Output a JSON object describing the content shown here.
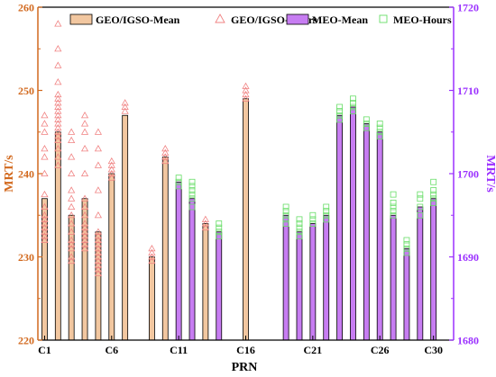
{
  "chart_data": {
    "type": "bar",
    "xlabel": "PRN",
    "ylabel_left": "MRT/s",
    "ylabel_right": "MRT/s",
    "ylim_left": [
      220,
      260
    ],
    "ylim_right": [
      1680,
      1720
    ],
    "yticks_left": [
      220,
      230,
      240,
      250,
      260
    ],
    "yticks_right": [
      1680,
      1690,
      1700,
      1710,
      1720
    ],
    "xtick_labels": [
      {
        "prn": 1,
        "label": "C1"
      },
      {
        "prn": 6,
        "label": "C6"
      },
      {
        "prn": 11,
        "label": "C11"
      },
      {
        "prn": 16,
        "label": "C16"
      },
      {
        "prn": 21,
        "label": "C21"
      },
      {
        "prn": 26,
        "label": "C26"
      },
      {
        "prn": 30,
        "label": "C30"
      }
    ],
    "colors": {
      "geo_bar": "#f2c7a0",
      "meo_bar": "#c77df2",
      "geo_marker": "#f08080",
      "meo_marker": "#66dd66",
      "left_axis": "#d2691e",
      "right_axis": "#9b30ff"
    },
    "legend": {
      "placement": "top",
      "geo_mean": "GEO/IGSO-Mean",
      "geo_hours": "GEO/IGSO-Hours",
      "meo_mean": "MEO-Mean",
      "meo_hours": "MEO-Hours"
    },
    "series": [
      {
        "name": "GEO/IGSO-Mean",
        "axis": "left",
        "points": [
          {
            "prn": 1,
            "value": 237
          },
          {
            "prn": 2,
            "value": 245
          },
          {
            "prn": 3,
            "value": 235
          },
          {
            "prn": 4,
            "value": 237
          },
          {
            "prn": 5,
            "value": 233
          },
          {
            "prn": 6,
            "value": 240
          },
          {
            "prn": 7,
            "value": 247
          },
          {
            "prn": 9,
            "value": 230
          },
          {
            "prn": 10,
            "value": 242
          },
          {
            "prn": 13,
            "value": 234
          },
          {
            "prn": 16,
            "value": 249
          }
        ]
      },
      {
        "name": "MEO-Mean",
        "axis": "right",
        "points": [
          {
            "prn": 11,
            "value": 1699
          },
          {
            "prn": 12,
            "value": 1697
          },
          {
            "prn": 14,
            "value": 1693
          },
          {
            "prn": 19,
            "value": 1695
          },
          {
            "prn": 20,
            "value": 1693
          },
          {
            "prn": 21,
            "value": 1694
          },
          {
            "prn": 22,
            "value": 1695
          },
          {
            "prn": 23,
            "value": 1707
          },
          {
            "prn": 24,
            "value": 1708
          },
          {
            "prn": 25,
            "value": 1706
          },
          {
            "prn": 26,
            "value": 1705
          },
          {
            "prn": 27,
            "value": 1695
          },
          {
            "prn": 28,
            "value": 1691
          },
          {
            "prn": 29,
            "value": 1696
          },
          {
            "prn": 30,
            "value": 1697
          }
        ]
      },
      {
        "name": "GEO/IGSO-Hours",
        "axis": "left",
        "points": [
          {
            "prn": 1,
            "values": [
              232,
              232.5,
              233,
              233.5,
              234,
              234.5,
              235,
              236,
              237.5,
              240,
              242,
              243,
              245,
              246,
              247
            ]
          },
          {
            "prn": 2,
            "values": [
              241,
              242,
              243,
              244,
              244.5,
              245,
              245.5,
              246,
              246.5,
              247,
              247.5,
              248,
              248.5,
              249,
              249.5,
              251,
              253,
              255,
              258
            ]
          },
          {
            "prn": 3,
            "values": [
              229.5,
              230,
              231,
              231.5,
              232,
              233,
              234,
              235,
              236,
              237,
              238,
              240,
              242,
              244,
              245
            ]
          },
          {
            "prn": 4,
            "values": [
              231,
              231.5,
              232,
              232.5,
              233,
              233.5,
              234,
              235,
              236,
              237,
              240,
              243,
              245,
              246,
              247
            ]
          },
          {
            "prn": 5,
            "values": [
              228,
              228.5,
              229,
              229.5,
              230,
              230.5,
              231,
              231.5,
              232,
              232.5,
              233,
              235,
              238,
              241,
              243,
              245
            ]
          },
          {
            "prn": 6,
            "values": [
              239.5,
              240,
              240.5,
              241,
              241.5
            ]
          },
          {
            "prn": 7,
            "values": [
              247.5,
              248,
              248.5
            ]
          },
          {
            "prn": 9,
            "values": [
              229.5,
              230,
              230.5,
              231
            ]
          },
          {
            "prn": 10,
            "values": [
              241.5,
              242,
              242.5,
              243
            ]
          },
          {
            "prn": 13,
            "values": [
              233.5,
              234,
              234.5
            ]
          },
          {
            "prn": 16,
            "values": [
              249,
              249.5,
              250,
              250.5
            ]
          }
        ]
      },
      {
        "name": "MEO-Hours",
        "axis": "right",
        "points": [
          {
            "prn": 11,
            "values": [
              1698.5,
              1699,
              1699.5
            ]
          },
          {
            "prn": 12,
            "values": [
              1696,
              1697,
              1697.5,
              1698,
              1698.5,
              1699
            ]
          },
          {
            "prn": 14,
            "values": [
              1692.5,
              1693,
              1693.5,
              1694
            ]
          },
          {
            "prn": 19,
            "values": [
              1694,
              1694.5,
              1695,
              1695.5,
              1696
            ]
          },
          {
            "prn": 20,
            "values": [
              1692.5,
              1693,
              1693.5,
              1694,
              1694.5
            ]
          },
          {
            "prn": 21,
            "values": [
              1694,
              1694.5,
              1695
            ]
          },
          {
            "prn": 22,
            "values": [
              1694.5,
              1695,
              1695.5,
              1696
            ]
          },
          {
            "prn": 23,
            "values": [
              1706.5,
              1707,
              1707.5,
              1708
            ]
          },
          {
            "prn": 24,
            "values": [
              1707.5,
              1708,
              1708.5,
              1709
            ]
          },
          {
            "prn": 25,
            "values": [
              1705.5,
              1706,
              1706.5
            ]
          },
          {
            "prn": 26,
            "values": [
              1704.5,
              1705,
              1705.5,
              1706
            ]
          },
          {
            "prn": 27,
            "values": [
              1695,
              1695.5,
              1696,
              1696.5,
              1697.5
            ]
          },
          {
            "prn": 28,
            "values": [
              1690.5,
              1691,
              1691.5,
              1692
            ]
          },
          {
            "prn": 29,
            "values": [
              1695,
              1696,
              1697,
              1697.5
            ]
          },
          {
            "prn": 30,
            "values": [
              1696.5,
              1697,
              1697.5,
              1698,
              1699
            ]
          }
        ]
      }
    ]
  }
}
